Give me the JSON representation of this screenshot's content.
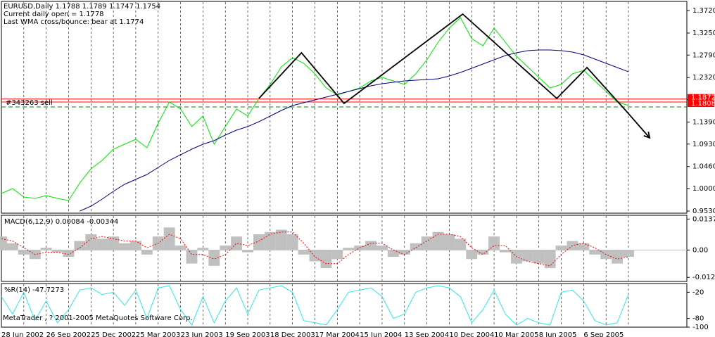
{
  "header": {
    "title": "EURUSD,Daily  1.1788 1.1789 1.1747 1.1754",
    "lines": [
      "Current daily open = 1.1778",
      "Last WMA cross/bounce: bear at 1.1774"
    ],
    "copyright": "MetaTrader , ? 2001-2005 MetaQuotes Software Corp."
  },
  "chart_data": [
    {
      "type": "line",
      "categories": [
        "28 Jun 2002",
        null,
        null,
        null,
        "26 Sep 2002",
        null,
        null,
        null,
        "25 Dec 2002",
        null,
        null,
        null,
        "25 Mar 2003",
        null,
        null,
        null,
        "23 Jun 2003",
        null,
        null,
        null,
        "19 Sep 2003",
        null,
        null,
        null,
        "18 Dec 2003",
        null,
        null,
        null,
        "17 Mar 2004",
        null,
        null,
        null,
        "15 Jun 2004",
        null,
        null,
        null,
        "13 Sep 2004",
        null,
        null,
        null,
        "10 Dec 2004",
        null,
        null,
        null,
        "10 Mar 2005",
        null,
        null,
        null,
        "8 Jun 2005",
        null,
        null,
        null,
        "6 Sep 2005",
        null,
        null,
        null,
        null
      ],
      "series": [
        {
          "color": "#00e600",
          "values": [
            0.9898,
            1.0001,
            0.9824,
            0.9795,
            0.9854,
            0.9795,
            0.9751,
            1.0118,
            1.0413,
            1.0589,
            1.0824,
            1.0927,
            1.103,
            1.0853,
            1.1368,
            1.1809,
            1.1662,
            1.1295,
            1.1515,
            1.0927,
            1.1295,
            1.1662,
            1.1515,
            1.1883,
            1.2177,
            1.2544,
            1.2735,
            1.2618,
            1.2397,
            1.2103,
            1.1956,
            1.203,
            1.2103,
            1.225,
            1.2324,
            1.225,
            1.2177,
            1.2397,
            1.2691,
            1.3059,
            1.3353,
            1.3573,
            1.3132,
            1.2985,
            1.3353,
            1.3059,
            1.2765,
            1.2544,
            1.2324,
            1.2103,
            1.2177,
            1.2397,
            1.2471,
            1.225,
            1.203,
            1.1809,
            1.1735
          ]
        },
        {
          "color": "#000080",
          "values": [
            null,
            null,
            null,
            null,
            null,
            null,
            null,
            0.953,
            0.9633,
            0.978,
            0.9942,
            1.0089,
            1.0192,
            1.0295,
            1.0442,
            1.0589,
            1.0707,
            1.0824,
            1.0927,
            1.1001,
            1.1118,
            1.1221,
            1.1295,
            1.1397,
            1.1515,
            1.1633,
            1.1735,
            1.1794,
            1.1853,
            1.1912,
            1.1971,
            1.203,
            1.2088,
            1.2147,
            1.2191,
            1.2221,
            1.225,
            1.2265,
            1.2279,
            1.2294,
            1.2353,
            1.2426,
            1.2515,
            1.2603,
            1.2691,
            1.2779,
            1.2838,
            1.2882,
            1.2897,
            1.2897,
            1.2882,
            1.2853,
            1.2794,
            1.2706,
            1.2618,
            1.2529,
            1.2441
          ]
        }
      ],
      "zigzag": {
        "color": "#000000",
        "x": [
          23.0,
          26.8,
          30.6,
          41.2,
          49.6,
          52.3,
          55.7,
          57.9
        ],
        "values": [
          1.1883,
          1.2838,
          1.178,
          1.3647,
          1.1883,
          1.2529,
          1.1647,
          1.1059
        ]
      },
      "levels": [
        1.1872,
        1.1808
      ],
      "level_color": "#ff0000",
      "order_label": "#343263 sell",
      "dashed_level": 1.1706,
      "dashed_color": "#008000",
      "ylim": [
        0.9486,
        1.3911
      ],
      "yticks": [
        {
          "value": 1.372,
          "label": "1.3720"
        },
        {
          "value": 1.325,
          "label": "1.3250"
        },
        {
          "value": 1.279,
          "label": "1.2790"
        },
        {
          "value": 1.232,
          "label": "1.2320"
        },
        {
          "value": 1.186,
          "label": "1.1860"
        },
        {
          "value": 1.139,
          "label": "1.1390"
        },
        {
          "value": 1.093,
          "label": "1.0930"
        },
        {
          "value": 1.046,
          "label": "1.0460"
        },
        {
          "value": 1.0,
          "label": "1.0000"
        },
        {
          "value": 0.953,
          "label": "0.9530"
        }
      ],
      "grid": true
    },
    {
      "type": "macd",
      "title": "MACD(6,12,9) 0.00084 -0.00344",
      "series": [
        {
          "color": "#c0c0c0",
          "values": [
            0.006,
            0.003,
            -0.002,
            -0.004,
            0.001,
            -0.001,
            -0.003,
            0.004,
            0.007,
            0.005,
            0.006,
            0.003,
            0.004,
            -0.002,
            0.006,
            0.01,
            0.002,
            -0.006,
            0.001,
            -0.007,
            0.002,
            0.006,
            -0.001,
            0.007,
            0.008,
            0.009,
            0.007,
            -0.002,
            -0.005,
            -0.008,
            -0.004,
            0.001,
            0.002,
            0.004,
            0.002,
            -0.003,
            -0.002,
            0.003,
            0.006,
            0.008,
            0.007,
            0.005,
            -0.004,
            -0.002,
            0.006,
            -0.001,
            -0.006,
            -0.005,
            -0.006,
            -0.008,
            0.002,
            0.004,
            0.003,
            -0.002,
            -0.004,
            -0.006,
            -0.003
          ]
        },
        {
          "color": "#ff0000",
          "values": [
            0.005,
            0.004,
            0.001,
            -0.002,
            -0.001,
            -0.001,
            -0.002,
            0.001,
            0.005,
            0.006,
            0.005,
            0.004,
            0.004,
            0.001,
            0.003,
            0.007,
            0.005,
            -0.002,
            -0.002,
            -0.004,
            -0.002,
            0.003,
            0.002,
            0.004,
            0.007,
            0.008,
            0.008,
            0.003,
            -0.003,
            -0.006,
            -0.006,
            -0.002,
            0.001,
            0.003,
            0.003,
            0,
            -0.002,
            0.001,
            0.004,
            0.007,
            0.007,
            0.006,
            0.001,
            -0.002,
            0.002,
            0.002,
            -0.003,
            -0.005,
            -0.006,
            -0.007,
            -0.002,
            0.002,
            0.003,
            0.001,
            -0.002,
            -0.004,
            -0.003
          ]
        }
      ],
      "ylim": [
        -0.0139,
        0.0154
      ],
      "yticks": [
        0.01373,
        {
          "value": 0,
          "label": "0.00"
        },
        -0.0121
      ]
    },
    {
      "type": "line",
      "title": "%R(14) -47.7273",
      "series": [
        {
          "color": "#33e6e6",
          "values": [
            -30,
            -70,
            -20,
            -85,
            -40,
            -90,
            -60,
            -15,
            -10,
            -25,
            -20,
            -50,
            -15,
            -80,
            -10,
            -5,
            -60,
            -95,
            -30,
            -90,
            -40,
            -10,
            -70,
            -15,
            -10,
            -5,
            -20,
            -85,
            -90,
            -95,
            -60,
            -20,
            -15,
            -10,
            -30,
            -80,
            -70,
            -20,
            -10,
            -5,
            -10,
            -30,
            -90,
            -60,
            -15,
            -70,
            -95,
            -80,
            -90,
            -95,
            -20,
            -15,
            -40,
            -85,
            -95,
            -90,
            -25
          ]
        }
      ],
      "ylim": [
        -100,
        0
      ],
      "yticks": [
        -20,
        -80,
        -100
      ]
    }
  ]
}
